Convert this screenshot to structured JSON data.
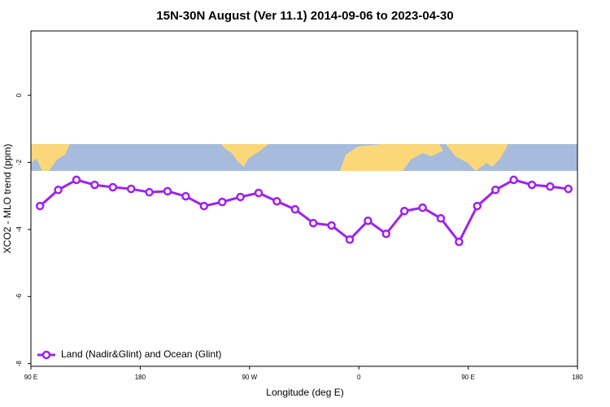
{
  "chart_data": {
    "type": "line",
    "title": "15N-30N August (Ver 11.1)   2014-09-06 to 2023-04-30",
    "x_label": "Longitude (deg E)",
    "y_label": "XCO2 - MLO trend (ppm)",
    "x": [
      97.5,
      112.5,
      127.5,
      142.5,
      157.5,
      172.5,
      187.5,
      202.5,
      217.5,
      232.5,
      247.5,
      262.5,
      277.5,
      292.5,
      307.5,
      322.5,
      337.5,
      352.5,
      367.5,
      382.5,
      397.5,
      412.5,
      427.5,
      442.5,
      457.5,
      472.5,
      487.5,
      502.5,
      517.5,
      532.5
    ],
    "series": [
      {
        "name": "Land (Nadir&Glint) and Ocean (Glint)",
        "color": "#a020f0",
        "values": [
          -3.3,
          -2.82,
          -2.52,
          -2.67,
          -2.74,
          -2.79,
          -2.89,
          -2.86,
          -3.01,
          -3.3,
          -3.18,
          -3.03,
          -2.91,
          -3.16,
          -3.4,
          -3.81,
          -3.88,
          -4.3,
          -3.74,
          -4.13,
          -3.45,
          -3.35,
          -3.67,
          -4.37,
          -3.3,
          -2.82,
          -2.52,
          -2.67,
          -2.72,
          -2.79
        ]
      }
    ],
    "xlim": [
      90,
      540
    ],
    "xticks": [
      {
        "value": 90,
        "label": "90 E"
      },
      {
        "value": 180,
        "label": "180"
      },
      {
        "value": 270,
        "label": "90 W"
      },
      {
        "value": 360,
        "label": "0"
      },
      {
        "value": 450,
        "label": "90 E"
      },
      {
        "value": 540,
        "label": "180"
      }
    ],
    "ylim": [
      -8.08,
      1.92
    ],
    "yticks": [
      0,
      -2,
      -4,
      -6,
      -8
    ],
    "legend": "lower left"
  }
}
